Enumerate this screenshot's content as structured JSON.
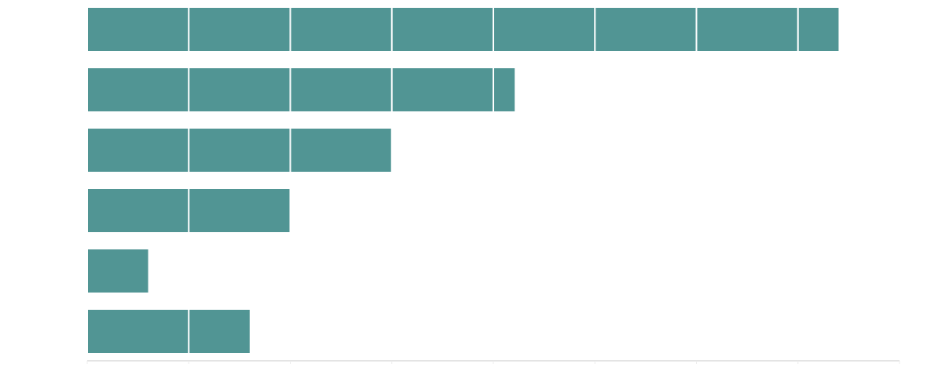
{
  "chart_data": {
    "type": "hbar",
    "categories": [
      null,
      null,
      null,
      null,
      null,
      null
    ],
    "values": [
      7.4,
      4.21,
      3.0,
      2.0,
      0.6,
      1.6
    ],
    "color": "#519594",
    "xlim": [
      0,
      8
    ],
    "xticks": [
      0,
      1,
      2,
      3,
      4,
      5,
      6,
      7,
      8
    ],
    "grid": true
  }
}
